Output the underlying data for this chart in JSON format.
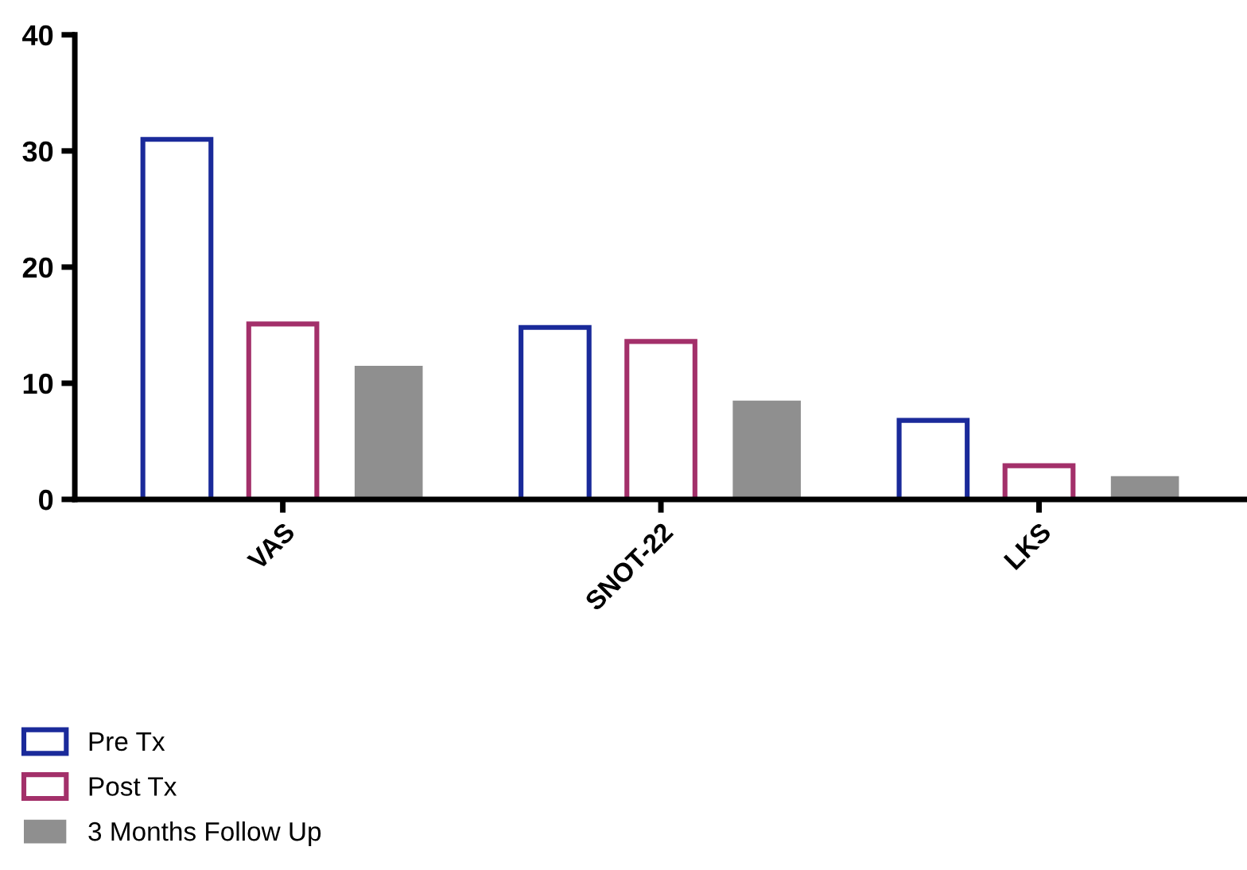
{
  "chart_data": {
    "type": "bar",
    "categories": [
      "VAS",
      "SNOT-22",
      "LKS"
    ],
    "series": [
      {
        "name": "Pre Tx",
        "color": "#1a2a9a",
        "values": [
          31.0,
          14.8,
          6.8
        ]
      },
      {
        "name": "Post Tx",
        "color": "#a3306a",
        "values": [
          15.1,
          13.6,
          2.9
        ]
      },
      {
        "name": "3 Months Follow Up",
        "color": "#8f8f8f",
        "values": [
          11.5,
          8.5,
          2.0
        ]
      }
    ],
    "ylim": [
      0,
      40
    ],
    "yticks": [
      0,
      10,
      20,
      30,
      40
    ],
    "grid": false,
    "legend": "bottom left"
  }
}
